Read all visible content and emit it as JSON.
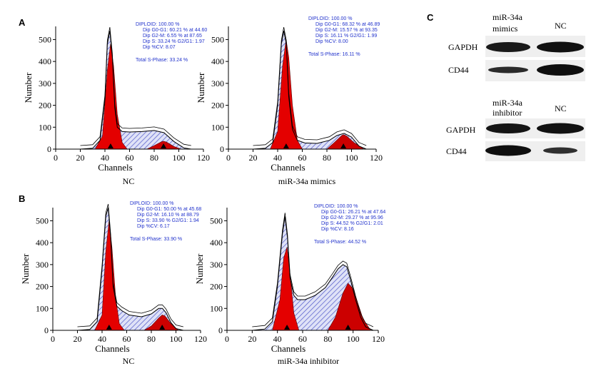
{
  "panel_labels": {
    "A": "A",
    "B": "B",
    "C": "C"
  },
  "axis": {
    "xlabel": "Channels",
    "ylabel": "Number",
    "xticks": [
      "0",
      "20",
      "40",
      "60",
      "80",
      "100",
      "120"
    ]
  },
  "colors": {
    "histogram_outline": "#000000",
    "g1_fill": "#e40000",
    "g2_fill": "#cc0000",
    "s_phase_hatch": "#4f57c9",
    "annotation_text": "#2233cc",
    "axis": "#000000"
  },
  "histograms": [
    {
      "id": "A-NC",
      "caption": "NC",
      "yticks": [
        "0",
        "100",
        "200",
        "300",
        "400",
        "500"
      ],
      "stats": [
        "DIPLOID: 100.00 %",
        "Dip G0-G1: 60.21 % at 44.60",
        "Dip G2-M: 6.55 % at 87.65",
        "Dip S: 33.24 %  G2/G1: 1.97",
        "Dip %CV: 8.07"
      ],
      "total": "Total S-Phase: 33.24 %"
    },
    {
      "id": "A-mimics",
      "caption": "miR-34a mimics",
      "yticks": [
        "0",
        "100",
        "200",
        "300",
        "400",
        "500"
      ],
      "stats": [
        "DIPLOID: 100.00 %",
        "Dip G0-G1: 68.32 % at 46.89",
        "Dip G2-M: 15.57 % at 93.35",
        "Dip S: 16.11 %  G2/G1: 1.99",
        "Dip %CV: 8.00"
      ],
      "total": "Total S-Phase: 16.11 %"
    },
    {
      "id": "B-NC",
      "caption": "NC",
      "yticks": [
        "0",
        "100",
        "200",
        "300",
        "400",
        "500"
      ],
      "stats": [
        "DIPLOID: 100.00 %",
        "Dip G0-G1: 50.00 % at 45.68",
        "Dip G2-M: 16.10 % at 88.79",
        "Dip S: 33.90 %  G2/G1: 1.94",
        "Dip %CV: 6.17"
      ],
      "total": "Total S-Phase: 33.90 %"
    },
    {
      "id": "B-inhibitor",
      "caption": "miR-34a inhibitor",
      "yticks": [
        "0",
        "100",
        "200",
        "300",
        "400",
        "500"
      ],
      "stats": [
        "DIPLOID: 100.00 %",
        "Dip G0-G1: 26.21 % at 47.64",
        "Dip G2-M: 29.27 % at 95.96",
        "Dip S: 44.52 %  G2/G1: 2.01",
        "Dip %CV: 8.16"
      ],
      "total": "Total S-Phase: 44.52 %"
    }
  ],
  "western_blots": [
    {
      "columns": [
        "miR-34a mimics",
        "NC"
      ],
      "rows": [
        "GAPDH",
        "CD44"
      ]
    },
    {
      "columns": [
        "miR-34a inhibitor",
        "NC"
      ],
      "rows": [
        "GAPDH",
        "CD44"
      ]
    }
  ],
  "chart_data": [
    {
      "type": "area",
      "title": "NC",
      "xlabel": "Channels",
      "ylabel": "Number",
      "xlim": [
        0,
        120
      ],
      "ylim": [
        0,
        560
      ],
      "series": [
        {
          "name": "",
          "x": [
            20,
            30,
            36,
            40,
            42,
            44,
            46,
            48,
            50,
            54,
            60,
            70,
            80,
            88,
            96,
            104,
            110
          ],
          "values": [
            0,
            4,
            40,
            230,
            480,
            540,
            420,
            190,
            100,
            80,
            78,
            80,
            85,
            75,
            35,
            6,
            0
          ]
        },
        {
          "name": "",
          "x": [
            32,
            38,
            42,
            44.6,
            47,
            50,
            54,
            58
          ],
          "values": [
            0,
            60,
            360,
            480,
            380,
            160,
            30,
            0
          ]
        },
        {
          "name": "",
          "x": [
            74,
            80,
            86,
            87.6,
            90,
            96,
            102
          ],
          "values": [
            0,
            16,
            34,
            36,
            32,
            12,
            0
          ]
        }
      ]
    },
    {
      "type": "area",
      "title": "miR-34a mimics",
      "xlabel": "Channels",
      "ylabel": "Number",
      "xlim": [
        0,
        120
      ],
      "ylim": [
        0,
        560
      ],
      "series": [
        {
          "name": "",
          "x": [
            20,
            30,
            36,
            40,
            43,
            45,
            47,
            49,
            52,
            56,
            62,
            72,
            82,
            88,
            94,
            100,
            106,
            112
          ],
          "values": [
            0,
            4,
            30,
            200,
            480,
            540,
            480,
            240,
            90,
            40,
            28,
            26,
            40,
            62,
            72,
            55,
            14,
            0
          ]
        },
        {
          "name": "",
          "x": [
            34,
            40,
            44,
            46.9,
            49,
            52,
            56,
            60
          ],
          "values": [
            0,
            80,
            380,
            500,
            420,
            200,
            40,
            0
          ]
        },
        {
          "name": "",
          "x": [
            80,
            86,
            92,
            93.4,
            96,
            102,
            110
          ],
          "values": [
            0,
            30,
            62,
            66,
            60,
            30,
            0
          ]
        }
      ]
    },
    {
      "type": "area",
      "title": "NC",
      "xlabel": "Channels",
      "ylabel": "Number",
      "xlim": [
        0,
        120
      ],
      "ylim": [
        0,
        560
      ],
      "series": [
        {
          "name": "",
          "x": [
            20,
            30,
            36,
            40,
            43,
            45,
            47,
            49,
            52,
            56,
            62,
            72,
            80,
            86,
            89,
            92,
            96,
            100,
            106
          ],
          "values": [
            0,
            4,
            40,
            280,
            520,
            560,
            420,
            200,
            110,
            90,
            70,
            62,
            75,
            100,
            100,
            80,
            35,
            8,
            0
          ]
        },
        {
          "name": "",
          "x": [
            34,
            40,
            43,
            45.7,
            48,
            51,
            54,
            58
          ],
          "values": [
            0,
            70,
            360,
            500,
            380,
            150,
            30,
            0
          ]
        },
        {
          "name": "",
          "x": [
            74,
            80,
            86,
            88.8,
            91,
            96,
            102
          ],
          "values": [
            0,
            20,
            56,
            70,
            66,
            30,
            0
          ]
        }
      ]
    },
    {
      "type": "area",
      "title": "miR-34a inhibitor",
      "xlabel": "Channels",
      "ylabel": "Number",
      "xlim": [
        0,
        120
      ],
      "ylim": [
        0,
        560
      ],
      "series": [
        {
          "name": "",
          "x": [
            20,
            30,
            36,
            40,
            44,
            46,
            48,
            50,
            53,
            56,
            62,
            70,
            78,
            84,
            88,
            92,
            95,
            98,
            102,
            106,
            110,
            116
          ],
          "values": [
            0,
            6,
            40,
            200,
            440,
            520,
            420,
            240,
            160,
            140,
            140,
            160,
            195,
            245,
            280,
            300,
            290,
            230,
            140,
            60,
            16,
            0
          ]
        },
        {
          "name": "",
          "x": [
            36,
            42,
            45,
            47.6,
            50,
            53,
            57
          ],
          "values": [
            0,
            140,
            330,
            380,
            260,
            80,
            0
          ]
        },
        {
          "name": "",
          "x": [
            80,
            86,
            92,
            96,
            100,
            104,
            108,
            114
          ],
          "values": [
            0,
            60,
            170,
            215,
            190,
            120,
            50,
            0
          ]
        }
      ]
    }
  ]
}
